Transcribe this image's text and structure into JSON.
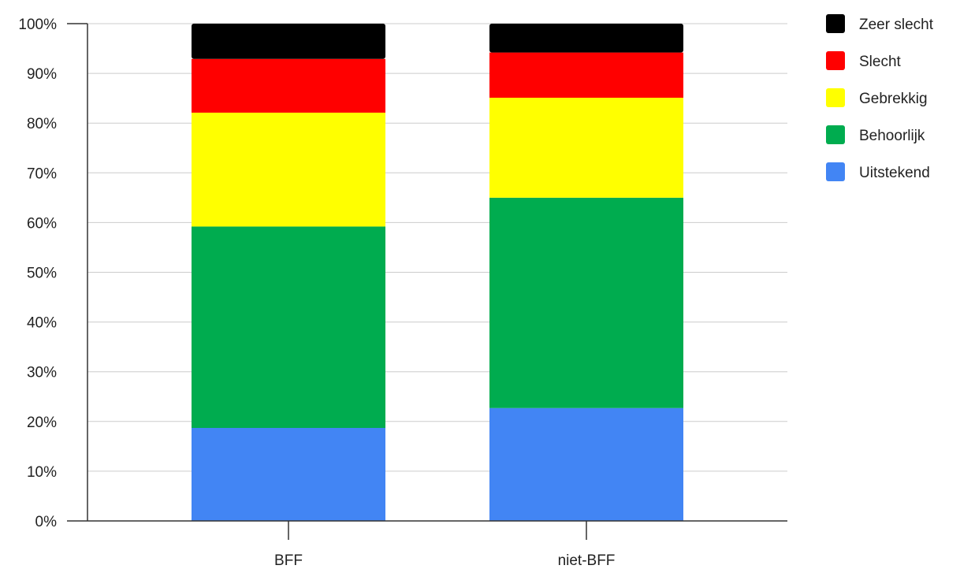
{
  "chart_data": {
    "type": "bar",
    "stacked": true,
    "categories": [
      "BFF",
      "niet-BFF"
    ],
    "series": [
      {
        "name": "Uitstekend",
        "color": "#4285f4",
        "values": [
          18.7,
          22.7
        ]
      },
      {
        "name": "Behoorlijk",
        "color": "#00ac4f",
        "values": [
          40.5,
          42.3
        ]
      },
      {
        "name": "Gebrekkig",
        "color": "#ffff00",
        "values": [
          22.9,
          20.1
        ]
      },
      {
        "name": "Slecht",
        "color": "#ff0000",
        "values": [
          10.8,
          9.1
        ]
      },
      {
        "name": "Zeer slecht",
        "color": "#000000",
        "values": [
          7.1,
          5.8
        ]
      }
    ],
    "legend_order": [
      "Zeer slecht",
      "Slecht",
      "Gebrekkig",
      "Behoorlijk",
      "Uitstekend"
    ],
    "legend_position": "right",
    "ylim": [
      0,
      100
    ],
    "yticks": [
      "0%",
      "10%",
      "20%",
      "30%",
      "40%",
      "50%",
      "60%",
      "70%",
      "80%",
      "90%",
      "100%"
    ],
    "grid": true,
    "title": "",
    "xlabel": "",
    "ylabel": ""
  }
}
